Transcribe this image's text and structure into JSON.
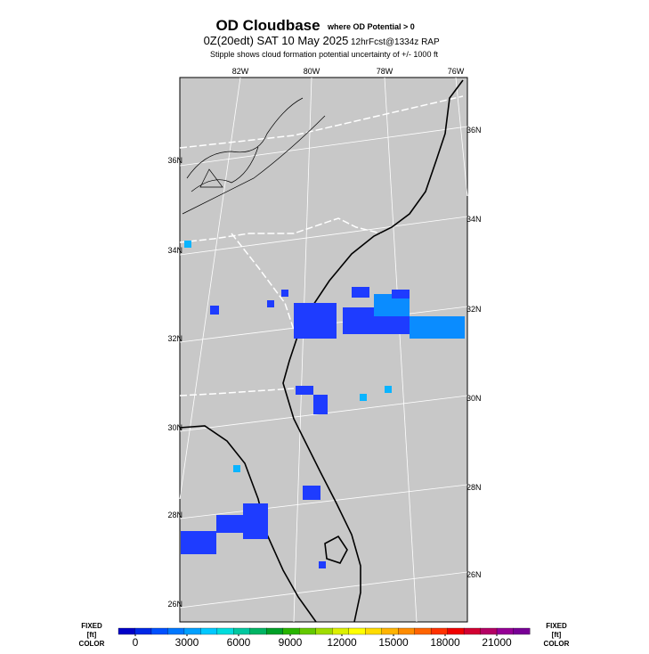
{
  "header": {
    "title": "OD Cloudbase",
    "title_note": "where OD Potential > 0",
    "run": "0Z(20edt) SAT 10 May 2025",
    "forecast": "12hrFcst@1334z RAP",
    "note": "Stipple shows cloud formation potential uncertainty of +/-  1000 ft"
  },
  "map": {
    "lon_labels_top": [
      "82W",
      "80W",
      "78W",
      "76W"
    ],
    "lat_labels_left": [
      "36N",
      "34N",
      "32N",
      "30N",
      "28N",
      "26N"
    ],
    "lat_labels_right": [
      "36N",
      "34N",
      "32N",
      "30N",
      "28N",
      "26N"
    ]
  },
  "colorbar": {
    "left_labels": [
      "FIXED",
      "[ft]",
      "COLOR"
    ],
    "right_labels": [
      "FIXED",
      "[ft]",
      "COLOR"
    ],
    "ticks": [
      0,
      3000,
      6000,
      9000,
      12000,
      15000,
      18000,
      21000
    ],
    "colors": [
      "#0000c8",
      "#0028e6",
      "#0050ff",
      "#0078ff",
      "#00a0ff",
      "#00c8ff",
      "#00dcdc",
      "#00c8a0",
      "#00b464",
      "#00a028",
      "#28b400",
      "#64c800",
      "#a0dc00",
      "#dcf000",
      "#ffff00",
      "#ffdc00",
      "#ffb400",
      "#ff8c00",
      "#ff6400",
      "#ff3200",
      "#f00000",
      "#d20032",
      "#b40064",
      "#960096",
      "#780096"
    ]
  }
}
